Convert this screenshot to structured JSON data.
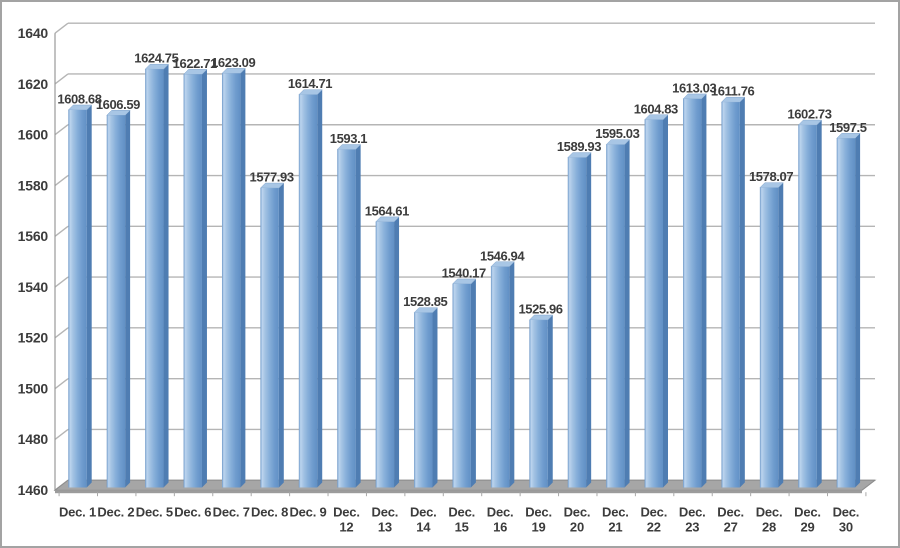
{
  "chart_data": {
    "type": "bar",
    "style": "3d-column",
    "title": "",
    "xlabel": "",
    "ylabel": "",
    "legend": false,
    "grid": true,
    "ylim": [
      1460,
      1640
    ],
    "y_ticks": [
      1460,
      1480,
      1500,
      1520,
      1540,
      1560,
      1580,
      1600,
      1620,
      1640
    ],
    "categories": [
      "Dec. 1",
      "Dec. 2",
      "Dec. 5",
      "Dec. 6",
      "Dec. 7",
      "Dec. 8",
      "Dec. 9",
      "Dec. 12",
      "Dec. 13",
      "Dec. 14",
      "Dec. 15",
      "Dec. 16",
      "Dec. 19",
      "Dec. 20",
      "Dec. 21",
      "Dec. 22",
      "Dec. 23",
      "Dec. 27",
      "Dec. 28",
      "Dec. 29",
      "Dec. 30"
    ],
    "values": [
      1608.68,
      1606.59,
      1624.75,
      1622.71,
      1623.09,
      1577.93,
      1614.71,
      1593.1,
      1564.61,
      1528.85,
      1540.17,
      1546.94,
      1525.96,
      1589.93,
      1595.03,
      1604.83,
      1613.03,
      1611.76,
      1578.07,
      1602.73,
      1597.5
    ],
    "data_labels": [
      "1608.68",
      "1606.59",
      "1624.75",
      "1622.71",
      "1623.09",
      "1577.93",
      "1614.71",
      "1593.1",
      "1564.61",
      "1528.85",
      "1540.17",
      "1546.94",
      "1525.96",
      "1589.93",
      "1595.03",
      "1604.83",
      "1613.03",
      "1611.76",
      "1578.07",
      "1602.73",
      "1597.5"
    ],
    "colors": {
      "bar_edge": "#6a93c2",
      "bar_highlight": "#bcd4ee",
      "bar_light": "#a5c4e4",
      "bar_main": "#7aa5d4",
      "bar_dark": "#6190c5",
      "bar_side": "#4f7db2",
      "bar_top": "#a8c6e5",
      "gridline": "#b5b5b5",
      "axis": "#9a9a9a",
      "floor": "#a6a6a6",
      "floor_front": "#9c9c9c",
      "floor_edge": "#8d8d8d",
      "text": "#3c3c3c",
      "frame_border": "#a3a3a3",
      "background": "#ffffff"
    }
  }
}
